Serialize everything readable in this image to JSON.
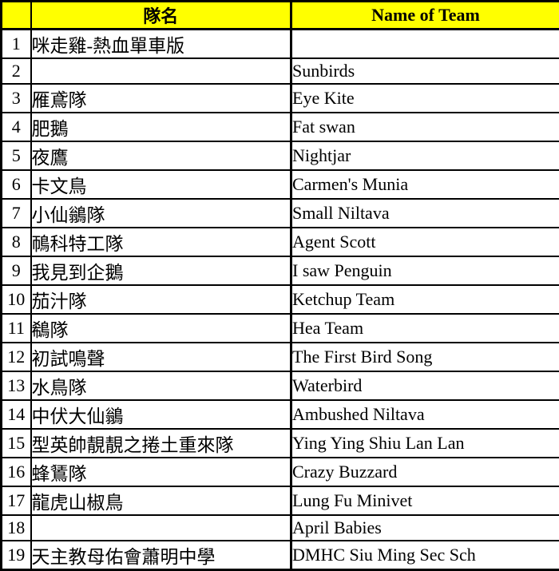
{
  "colors": {
    "header_bg": "#FFFF00",
    "border": "#000000",
    "text": "#000000",
    "row_bg": "#FFFFFF"
  },
  "table": {
    "header": {
      "number": "",
      "team_name_zh": "隊名",
      "team_name_en": "Name of Team"
    },
    "rows": [
      {
        "number": "1",
        "zh": "咪走雞-熱血單車版",
        "en": ""
      },
      {
        "number": "2",
        "zh": "",
        "en": "Sunbirds"
      },
      {
        "number": "3",
        "zh": "雁鳶隊",
        "en": "Eye Kite"
      },
      {
        "number": "4",
        "zh": "肥鵝",
        "en": "Fat swan"
      },
      {
        "number": "5",
        "zh": "夜鷹",
        "en": "Nightjar"
      },
      {
        "number": "6",
        "zh": "卡文鳥",
        "en": "Carmen's Munia"
      },
      {
        "number": "7",
        "zh": "小仙鶲隊",
        "en": "Small Niltava"
      },
      {
        "number": "8",
        "zh": "鳾科特工隊",
        "en": "Agent Scott"
      },
      {
        "number": "9",
        "zh": "我見到企鵝",
        "en": "I saw Penguin"
      },
      {
        "number": "10",
        "zh": "茄汁隊",
        "en": "Ketchup Team"
      },
      {
        "number": "11",
        "zh": "鵗隊",
        "en": "Hea Team"
      },
      {
        "number": "12",
        "zh": "初試鳴聲",
        "en": "The First Bird Song"
      },
      {
        "number": "13",
        "zh": "水鳥隊",
        "en": "Waterbird"
      },
      {
        "number": "14",
        "zh": "中伏大仙鶲",
        "en": "Ambushed Niltava"
      },
      {
        "number": "15",
        "zh": "型英帥靚靚之捲土重來隊",
        "en": "Ying Ying Shiu Lan Lan"
      },
      {
        "number": "16",
        "zh": "蜂鵟隊",
        "en": "Crazy Buzzard"
      },
      {
        "number": "17",
        "zh": "龍虎山椒鳥",
        "en": "Lung Fu Minivet"
      },
      {
        "number": "18",
        "zh": "",
        "en": "April Babies"
      },
      {
        "number": "19",
        "zh": "天主教母佑會蕭明中學",
        "en": "DMHC Siu Ming Sec Sch"
      }
    ]
  }
}
